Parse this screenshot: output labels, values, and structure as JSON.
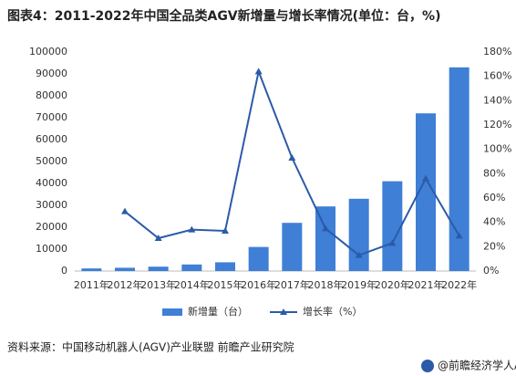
{
  "chart_data": {
    "type": "bar-line",
    "title": "图表4：2011-2022年中国全品类AGV新增量与增长率情况(单位：台，%)",
    "categories": [
      "2011年",
      "2012年",
      "2013年",
      "2014年",
      "2015年",
      "2016年",
      "2017年",
      "2018年",
      "2019年",
      "2020年",
      "2021年",
      "2022年"
    ],
    "series": [
      {
        "name": "新增量（台）",
        "type": "bar",
        "color": "#3f7fd6",
        "values": [
          1200,
          1500,
          2000,
          3000,
          4000,
          11000,
          22000,
          29500,
          33000,
          41000,
          72000,
          93000
        ]
      },
      {
        "name": "增长率（%）",
        "type": "line",
        "axis": "y2",
        "color": "#2b5ba8",
        "values": [
          null,
          49,
          27,
          34,
          33,
          164,
          93,
          35,
          13,
          23,
          76,
          29
        ]
      }
    ],
    "ylim": [
      0,
      100000
    ],
    "yticks": [
      0,
      10000,
      20000,
      30000,
      40000,
      50000,
      60000,
      70000,
      80000,
      90000,
      100000
    ],
    "y2lim": [
      0,
      180
    ],
    "y2ticks": [
      {
        "value": 0,
        "label": "0%"
      },
      {
        "value": 20,
        "label": "20%"
      },
      {
        "value": 40,
        "label": "40%"
      },
      {
        "value": 60,
        "label": "60%"
      },
      {
        "value": 80,
        "label": "80%"
      },
      {
        "value": 100,
        "label": "100%"
      },
      {
        "value": 120,
        "label": "120%"
      },
      {
        "value": 140,
        "label": "140%"
      },
      {
        "value": 160,
        "label": "160%"
      },
      {
        "value": 180,
        "label": "180%"
      }
    ],
    "source": "资料来源：中国移动机器人(AGV)产业联盟 前瞻产业研究院",
    "footer": "@前瞻经济学人APP"
  }
}
